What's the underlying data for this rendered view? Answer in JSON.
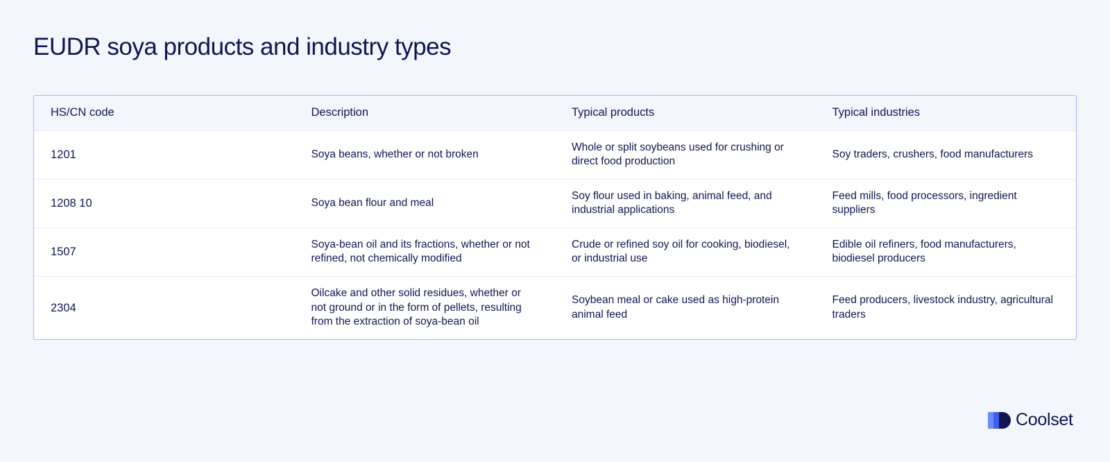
{
  "title": "EUDR soya products and industry types",
  "table": {
    "headers": [
      "HS/CN code",
      "Description",
      "Typical products",
      "Typical industries"
    ],
    "rows": [
      [
        "1201",
        "Soya beans, whether or not broken",
        "Whole or split soybeans used for crushing or direct food production",
        "Soy traders, crushers, food manufacturers"
      ],
      [
        "1208 10",
        "Soya bean flour and meal",
        "Soy flour used in baking, animal feed, and industrial applications",
        "Feed mills, food processors, ingredient suppliers"
      ],
      [
        "1507",
        "Soya-bean oil and its fractions, whether or not refined, not chemically modified",
        "Crude or refined soy oil for cooking, biodiesel, or industrial use",
        "Edible oil refiners, food manufacturers, biodiesel producers"
      ],
      [
        "2304",
        "Oilcake and other solid residues, whether or not ground or in the form of pellets, resulting from the extraction of soya-bean oil",
        "Soybean meal or cake used as high-protein animal feed",
        "Feed producers, livestock industry, agricultural traders"
      ]
    ]
  },
  "brand": {
    "name": "Coolset",
    "logo_icon": "coolset-logo-icon",
    "colors": {
      "light": "#6b8cf5",
      "mid": "#3d5ef0",
      "dark": "#0f1650"
    }
  }
}
